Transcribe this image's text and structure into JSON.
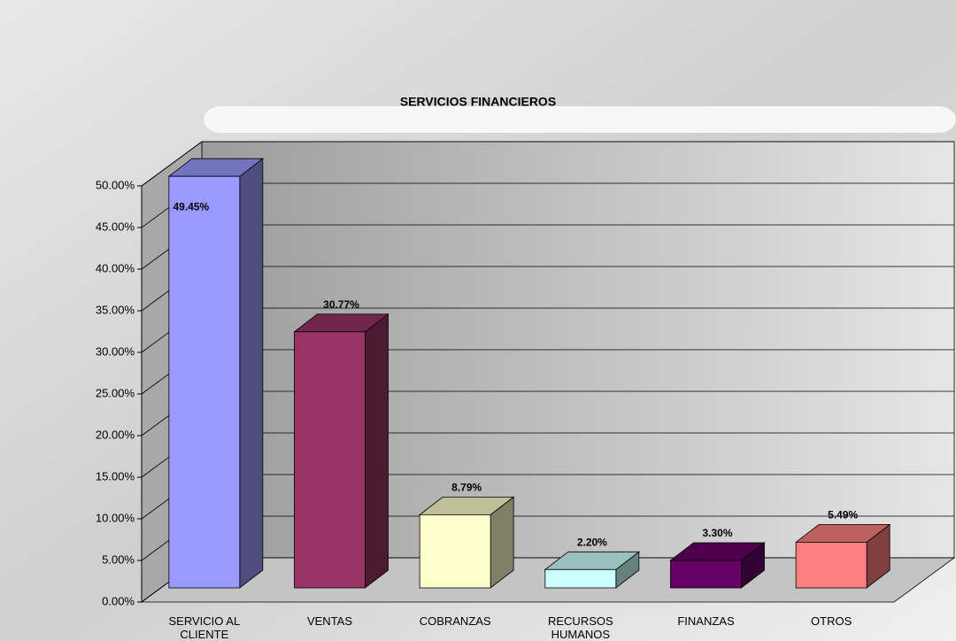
{
  "chart_data": {
    "type": "bar3d",
    "title": "SERVICIOS FINANCIEROS",
    "categories": [
      "SERVICIO AL CLIENTE",
      "VENTAS",
      "COBRANZAS",
      "RECURSOS HUMANOS",
      "FINANZAS",
      "OTROS"
    ],
    "values": [
      49.45,
      30.77,
      8.79,
      2.2,
      3.3,
      5.49
    ],
    "value_labels": [
      "49.45%",
      "30.77%",
      "8.79%",
      "2.20%",
      "3.30%",
      "5.49%"
    ],
    "colors": [
      "#9999ff",
      "#993366",
      "#ffffcc",
      "#ccffff",
      "#660066",
      "#ff8080"
    ],
    "ylim": [
      0,
      50
    ],
    "yticks": [
      {
        "value": 0,
        "label": "0.00%"
      },
      {
        "value": 5,
        "label": "5.00%"
      },
      {
        "value": 10,
        "label": "10.00%"
      },
      {
        "value": 15,
        "label": "15.00%"
      },
      {
        "value": 20,
        "label": "20.00%"
      },
      {
        "value": 25,
        "label": "25.00%"
      },
      {
        "value": 30,
        "label": "30.00%"
      },
      {
        "value": 35,
        "label": "35.00%"
      },
      {
        "value": 40,
        "label": "40.00%"
      },
      {
        "value": 45,
        "label": "45.00%"
      },
      {
        "value": 50,
        "label": "50.00%"
      }
    ],
    "grid": true
  }
}
